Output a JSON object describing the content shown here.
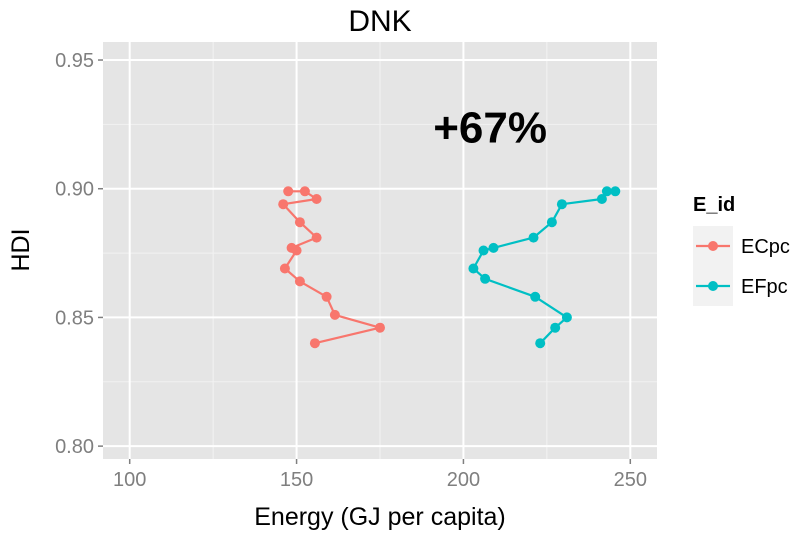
{
  "chart_data": {
    "type": "line",
    "title": "DNK",
    "xlabel": "Energy (GJ per capita)",
    "ylabel": "HDI",
    "xlim": [
      92,
      258
    ],
    "ylim": [
      0.795,
      0.957
    ],
    "xticks": [
      100,
      150,
      200,
      250
    ],
    "xtick_labels": [
      "100",
      "150",
      "200",
      "250"
    ],
    "yticks": [
      0.8,
      0.85,
      0.9,
      0.95
    ],
    "ytick_labels": [
      "0.80",
      "0.85",
      "0.90",
      "0.95"
    ],
    "grid": true,
    "legend_position": "right",
    "legend_title": "E_id",
    "annotation": {
      "text": "+67%",
      "x": 208,
      "y": 0.918
    },
    "series": [
      {
        "name": "ECpc",
        "color": "#F8766D",
        "points": [
          [
            155.5,
            0.84
          ],
          [
            175.0,
            0.846
          ],
          [
            161.5,
            0.851
          ],
          [
            159.0,
            0.858
          ],
          [
            151.0,
            0.864
          ],
          [
            146.5,
            0.869
          ],
          [
            150.0,
            0.876
          ],
          [
            148.5,
            0.877
          ],
          [
            156.0,
            0.881
          ],
          [
            151.0,
            0.887
          ],
          [
            146.0,
            0.894
          ],
          [
            156.0,
            0.896
          ],
          [
            152.5,
            0.899
          ],
          [
            147.5,
            0.899
          ]
        ]
      },
      {
        "name": "EFpc",
        "color": "#00BFC4",
        "points": [
          [
            223.0,
            0.84
          ],
          [
            227.5,
            0.846
          ],
          [
            231.0,
            0.85
          ],
          [
            221.5,
            0.858
          ],
          [
            206.5,
            0.865
          ],
          [
            203.0,
            0.869
          ],
          [
            206.0,
            0.876
          ],
          [
            209.0,
            0.877
          ],
          [
            221.0,
            0.881
          ],
          [
            226.5,
            0.887
          ],
          [
            229.5,
            0.894
          ],
          [
            241.5,
            0.896
          ],
          [
            243.0,
            0.899
          ],
          [
            245.5,
            0.899
          ]
        ]
      }
    ]
  },
  "colors": {
    "panel_background": "#E5E5E5",
    "grid_major": "#FFFFFF",
    "grid_minor": "#F2F2F2",
    "tick_text": "#7F7F7F",
    "legend_key_background": "#F2F2F2"
  }
}
